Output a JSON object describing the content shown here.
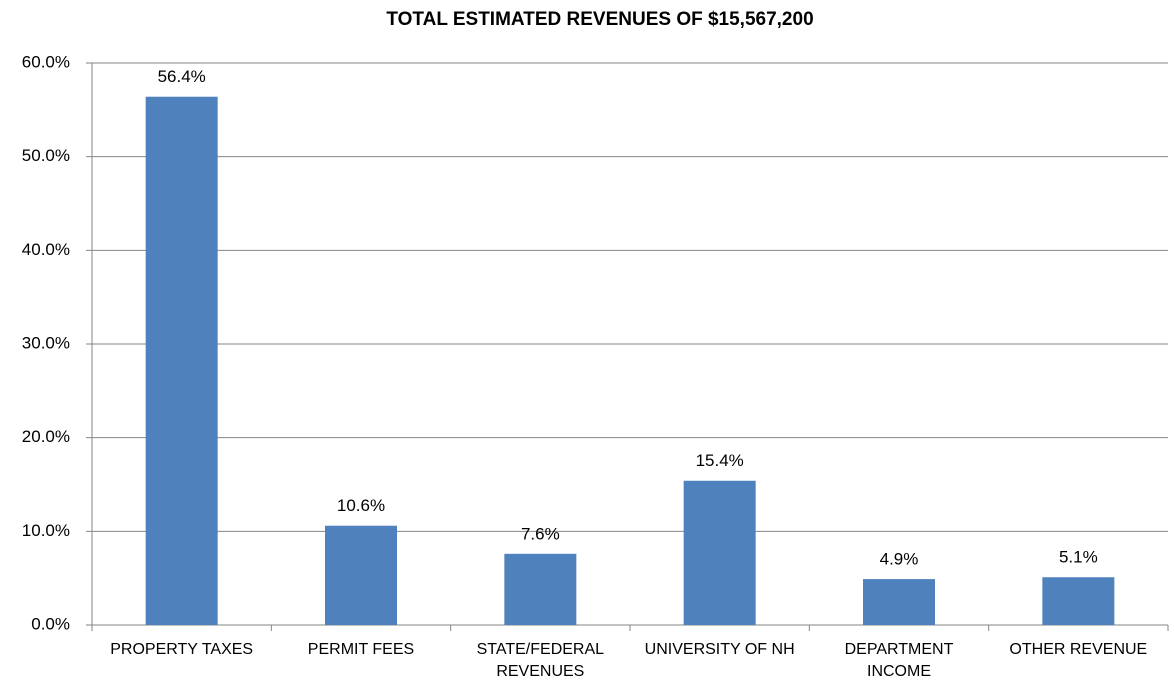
{
  "chart_data": {
    "type": "bar",
    "title": "TOTAL ESTIMATED REVENUES OF $15,567,200",
    "categories": [
      "PROPERTY TAXES",
      "PERMIT FEES",
      "STATE/FEDERAL REVENUES",
      "UNIVERSITY OF NH",
      "DEPARTMENT INCOME",
      "OTHER REVENUE"
    ],
    "values": [
      56.4,
      10.6,
      7.6,
      15.4,
      4.9,
      5.1
    ],
    "value_labels": [
      "56.4%",
      "10.6%",
      "7.6%",
      "15.4%",
      "4.9%",
      "5.1%"
    ],
    "color": "#4f81bd",
    "ylim": [
      0,
      60
    ],
    "yticks": [
      {
        "value": 0,
        "label": "0.0%"
      },
      {
        "value": 10,
        "label": "10.0%"
      },
      {
        "value": 20,
        "label": "20.0%"
      },
      {
        "value": 30,
        "label": "30.0%"
      },
      {
        "value": 40,
        "label": "40.0%"
      },
      {
        "value": 50,
        "label": "50.0%"
      },
      {
        "value": 60,
        "label": "60.0%"
      }
    ],
    "grid": true
  }
}
